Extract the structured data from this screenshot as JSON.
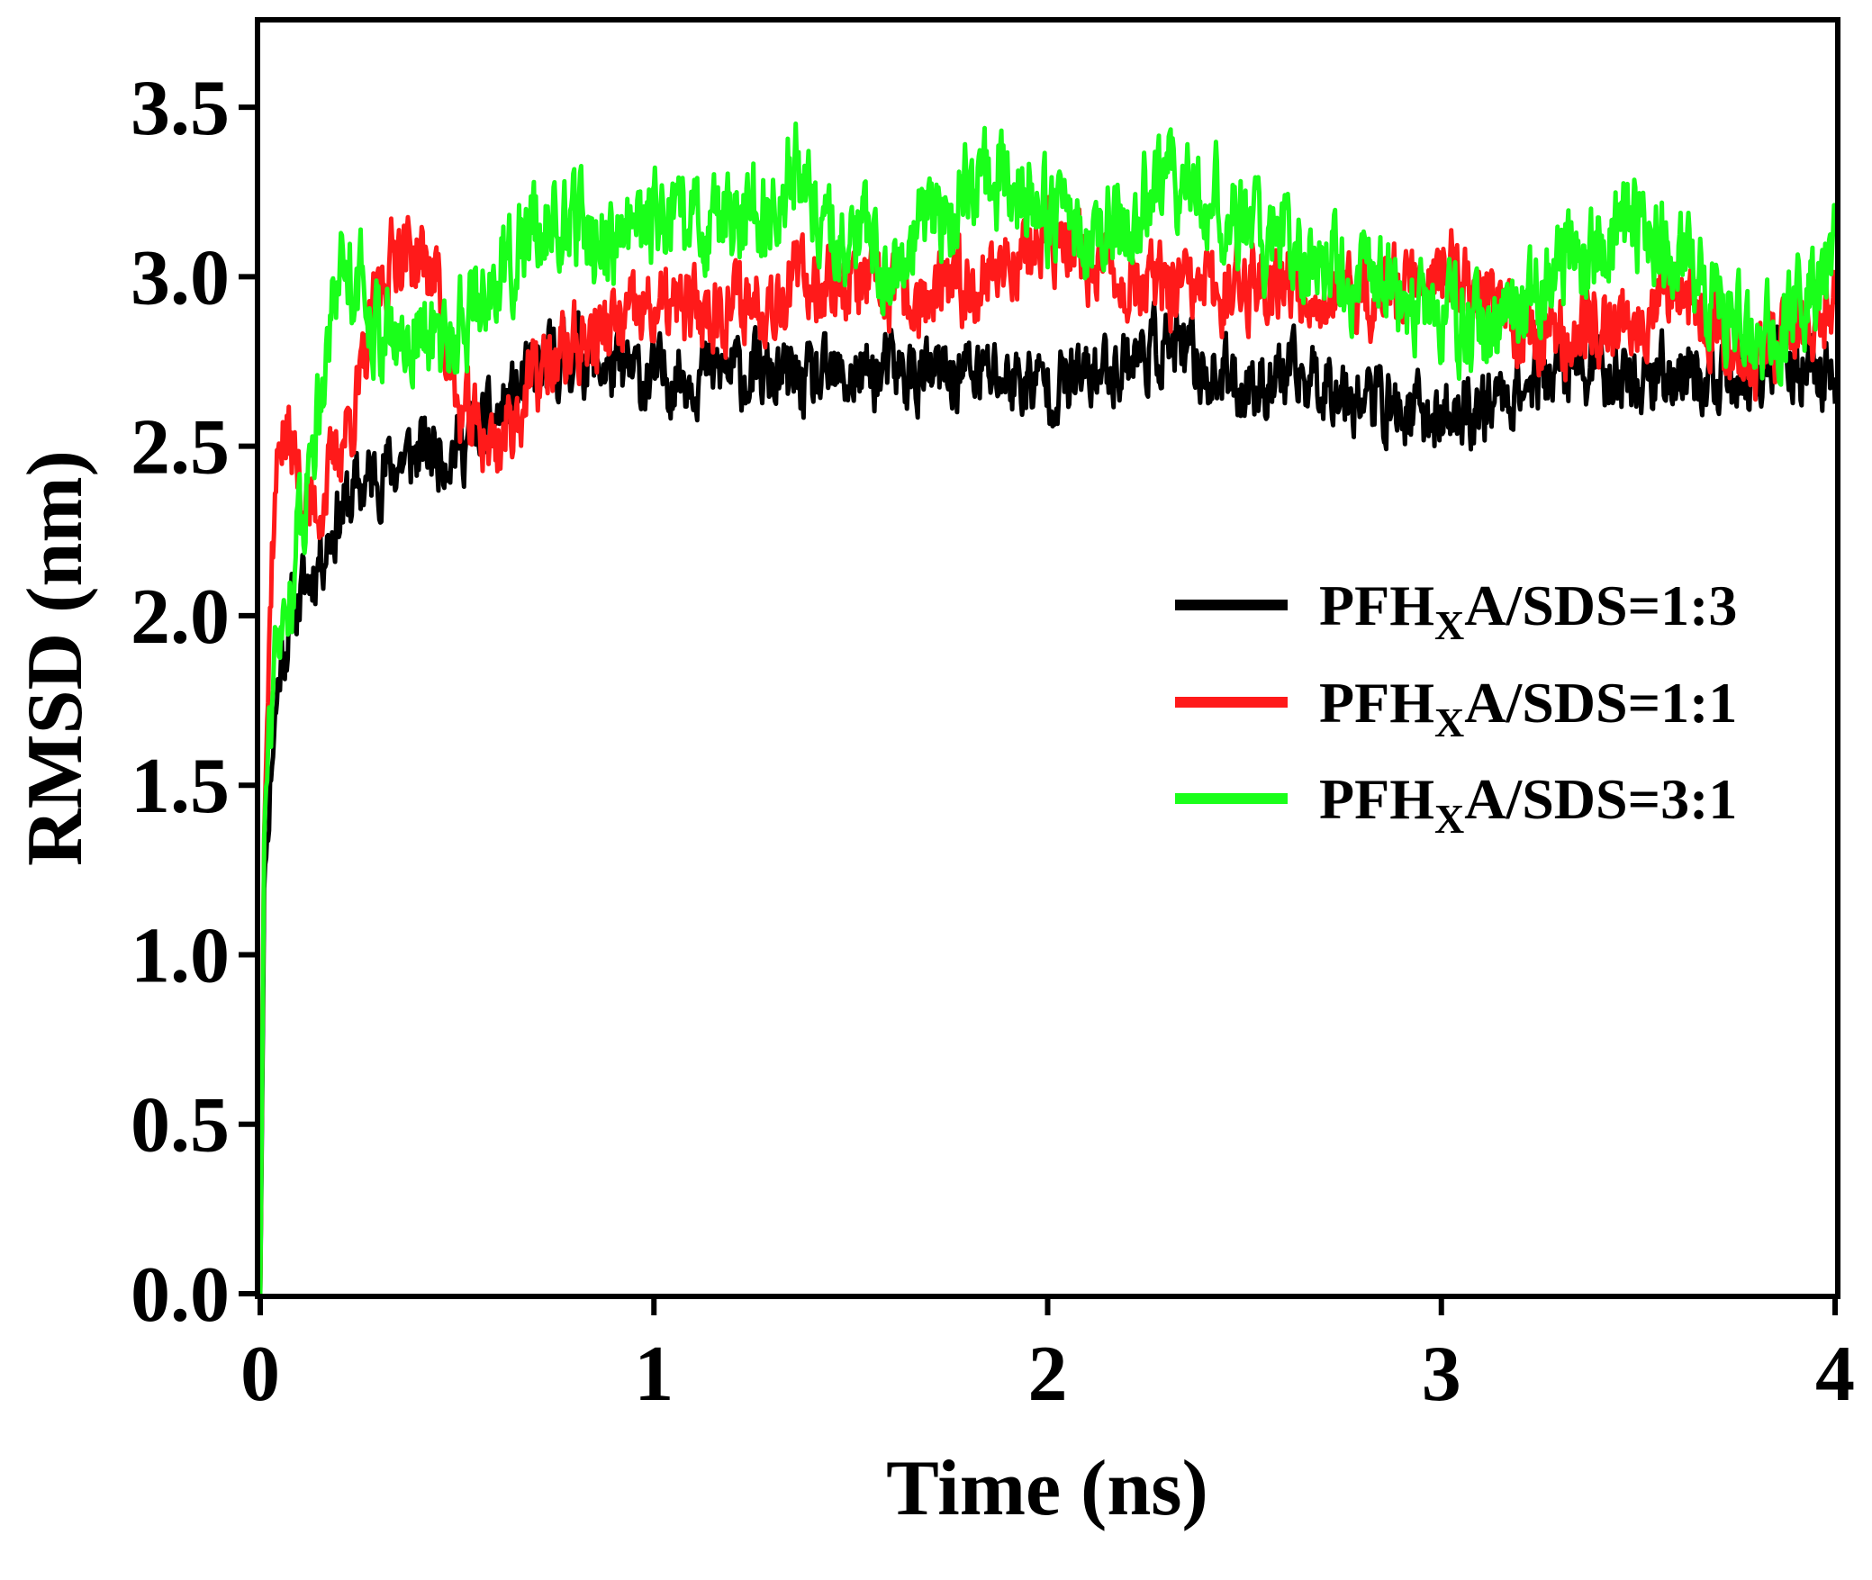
{
  "chart_data": {
    "type": "line",
    "title": "",
    "xlabel": "Time (ns)",
    "ylabel": "RMSD (nm)",
    "xlim": [
      0,
      4
    ],
    "ylim": [
      0,
      3.75
    ],
    "xticks": [
      0,
      1,
      2,
      3,
      4
    ],
    "xtick_labels": [
      "0",
      "1",
      "2",
      "3",
      "4"
    ],
    "yticks": [
      0.0,
      0.5,
      1.0,
      1.5,
      2.0,
      2.5,
      3.0,
      3.5
    ],
    "ytick_labels": [
      "0.0",
      "0.5",
      "1.0",
      "1.5",
      "2.0",
      "2.5",
      "3.0",
      "3.5"
    ],
    "legend_position": "center-right",
    "series": [
      {
        "name": "PFHXA/SDS=1:3",
        "label_main": "PFH",
        "label_sub": "X",
        "label_rest": "A/SDS=1:3",
        "color": "#000000",
        "x": [
          0,
          0.01,
          0.03,
          0.05,
          0.08,
          0.12,
          0.16,
          0.2,
          0.25,
          0.3,
          0.35,
          0.4,
          0.5,
          0.6,
          0.7,
          0.8,
          0.9,
          1.0,
          1.1,
          1.2,
          1.3,
          1.4,
          1.5,
          1.6,
          1.7,
          1.8,
          1.9,
          2.0,
          2.1,
          2.2,
          2.3,
          2.4,
          2.5,
          2.6,
          2.7,
          2.8,
          2.9,
          3.0,
          3.1,
          3.2,
          3.3,
          3.4,
          3.5,
          3.6,
          3.7,
          3.8,
          3.9,
          4.0
        ],
        "y": [
          0.0,
          1.2,
          1.6,
          1.85,
          2.0,
          2.1,
          2.2,
          2.3,
          2.38,
          2.42,
          2.45,
          2.48,
          2.5,
          2.58,
          2.72,
          2.78,
          2.72,
          2.7,
          2.72,
          2.72,
          2.7,
          2.68,
          2.7,
          2.72,
          2.7,
          2.72,
          2.7,
          2.68,
          2.7,
          2.76,
          2.8,
          2.72,
          2.68,
          2.7,
          2.7,
          2.65,
          2.6,
          2.58,
          2.62,
          2.68,
          2.72,
          2.72,
          2.7,
          2.72,
          2.68,
          2.7,
          2.72,
          2.72
        ]
      },
      {
        "name": "PFHXA/SDS=1:1",
        "label_main": "PFH",
        "label_sub": "X",
        "label_rest": "A/SDS=1:1",
        "color": "#ff1a1a",
        "x": [
          0,
          0.01,
          0.03,
          0.05,
          0.08,
          0.12,
          0.16,
          0.2,
          0.25,
          0.3,
          0.35,
          0.4,
          0.45,
          0.5,
          0.6,
          0.7,
          0.8,
          0.9,
          1.0,
          1.1,
          1.2,
          1.3,
          1.4,
          1.5,
          1.6,
          1.7,
          1.8,
          1.9,
          2.0,
          2.1,
          2.2,
          2.3,
          2.4,
          2.5,
          2.6,
          2.7,
          2.8,
          2.9,
          3.0,
          3.1,
          3.2,
          3.3,
          3.4,
          3.5,
          3.6,
          3.7,
          3.8,
          3.9,
          4.0
        ],
        "y": [
          0.0,
          1.4,
          2.2,
          2.55,
          2.5,
          2.3,
          2.35,
          2.5,
          2.65,
          2.95,
          3.1,
          3.05,
          3.0,
          2.6,
          2.5,
          2.7,
          2.8,
          2.85,
          2.9,
          2.9,
          2.92,
          2.95,
          3.0,
          2.98,
          2.95,
          2.92,
          2.98,
          3.05,
          3.1,
          3.05,
          3.0,
          2.95,
          2.95,
          2.98,
          3.0,
          2.95,
          2.92,
          2.98,
          3.05,
          2.95,
          2.85,
          2.82,
          2.85,
          2.9,
          3.0,
          2.85,
          2.75,
          2.85,
          2.9
        ]
      },
      {
        "name": "PFHXA/SDS=3:1",
        "label_main": "PFH",
        "label_sub": "X",
        "label_rest": "A/SDS=3:1",
        "color": "#1aff1a",
        "x": [
          0,
          0.01,
          0.03,
          0.05,
          0.08,
          0.12,
          0.16,
          0.2,
          0.25,
          0.3,
          0.35,
          0.4,
          0.45,
          0.5,
          0.6,
          0.7,
          0.8,
          0.9,
          1.0,
          1.1,
          1.2,
          1.3,
          1.35,
          1.4,
          1.5,
          1.6,
          1.7,
          1.8,
          1.9,
          2.0,
          2.1,
          2.2,
          2.3,
          2.4,
          2.5,
          2.6,
          2.7,
          2.8,
          2.9,
          3.0,
          3.1,
          3.2,
          3.3,
          3.4,
          3.5,
          3.6,
          3.7,
          3.8,
          3.9,
          4.0
        ],
        "y": [
          0.0,
          1.4,
          1.8,
          1.9,
          2.1,
          2.4,
          2.75,
          3.05,
          3.0,
          2.85,
          2.8,
          2.85,
          2.8,
          2.85,
          3.0,
          3.15,
          3.15,
          3.1,
          3.15,
          3.15,
          3.18,
          3.2,
          3.35,
          3.2,
          3.1,
          3.05,
          3.15,
          3.25,
          3.3,
          3.2,
          3.1,
          3.15,
          3.3,
          3.25,
          3.15,
          3.1,
          3.05,
          3.0,
          2.95,
          2.9,
          2.85,
          2.9,
          3.0,
          3.1,
          3.15,
          3.05,
          2.95,
          2.8,
          2.9,
          3.05
        ]
      }
    ]
  }
}
